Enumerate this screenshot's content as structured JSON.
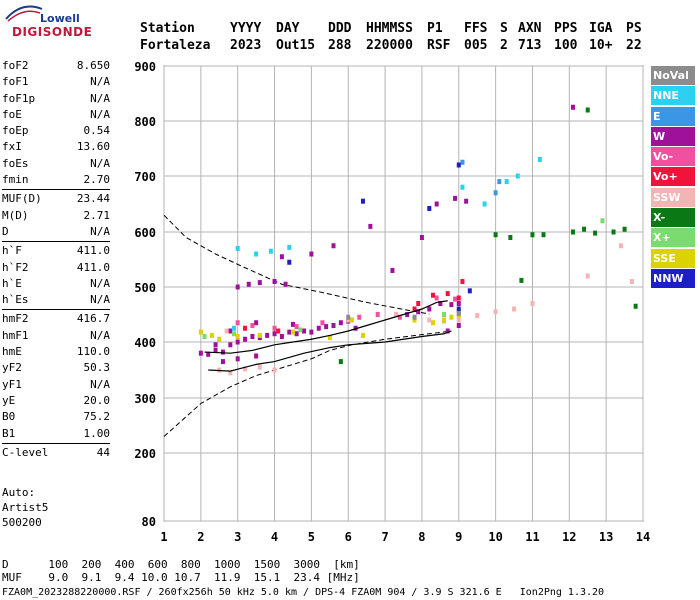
{
  "logo": {
    "top": "Lowell",
    "bottom": "DIGISONDE"
  },
  "header": {
    "labels": [
      "Station",
      "YYYY",
      "DAY",
      "DDD",
      "HHMMSS",
      "P1",
      "FFS",
      "S",
      "AXN",
      "PPS",
      "IGA",
      "PS"
    ],
    "values": [
      "Fortaleza",
      "2023",
      "Out15",
      "288",
      "220000",
      "RSF",
      "005",
      "2",
      "713",
      "100",
      "10+",
      "22"
    ]
  },
  "params": [
    {
      "name": "foF2",
      "value": "8.650"
    },
    {
      "name": "foF1",
      "value": "N/A"
    },
    {
      "name": "foF1p",
      "value": "N/A"
    },
    {
      "name": "foE",
      "value": "N/A"
    },
    {
      "name": "foEp",
      "value": "0.54"
    },
    {
      "name": "fxI",
      "value": "13.60"
    },
    {
      "name": "foEs",
      "value": "N/A"
    },
    {
      "name": "fmin",
      "value": "2.70"
    },
    {
      "name": "MUF(D)",
      "value": "23.44",
      "sep": true
    },
    {
      "name": "M(D)",
      "value": "2.71"
    },
    {
      "name": "D",
      "value": "N/A"
    },
    {
      "name": "h`F",
      "value": "411.0",
      "sep": true
    },
    {
      "name": "h`F2",
      "value": "411.0"
    },
    {
      "name": "h`E",
      "value": "N/A"
    },
    {
      "name": "h`Es",
      "value": "N/A"
    },
    {
      "name": "hmF2",
      "value": "416.7",
      "sep": true
    },
    {
      "name": "hmF1",
      "value": "N/A"
    },
    {
      "name": "hmE",
      "value": "110.0"
    },
    {
      "name": "yF2",
      "value": "50.3"
    },
    {
      "name": "yF1",
      "value": "N/A"
    },
    {
      "name": "yE",
      "value": "20.0"
    },
    {
      "name": "B0",
      "value": "75.2"
    },
    {
      "name": "B1",
      "value": "1.00"
    },
    {
      "name": "C-level",
      "value": "44",
      "sep": true
    }
  ],
  "auto": [
    "Auto:",
    "Artist5",
    "500200"
  ],
  "legend": [
    {
      "label": "NoVal",
      "color": "#8c8c8c"
    },
    {
      "label": "NNE",
      "color": "#28d2f0"
    },
    {
      "label": "E",
      "color": "#3c96e6"
    },
    {
      "label": "W",
      "color": "#a0119b"
    },
    {
      "label": "Vo-",
      "color": "#f050a0"
    },
    {
      "label": "Vo+",
      "color": "#f0143c"
    },
    {
      "label": "SSW",
      "color": "#f5b4b4"
    },
    {
      "label": "X-",
      "color": "#0a7814"
    },
    {
      "label": "X+",
      "color": "#78dc6e"
    },
    {
      "label": "SSE",
      "color": "#dcd200"
    },
    {
      "label": "NNW",
      "color": "#1e1ec8"
    }
  ],
  "footer": {
    "row1_label": "D",
    "row1_values": [
      "100",
      "200",
      "400",
      "600",
      "800",
      "1000",
      "1500",
      "3000",
      "[km]"
    ],
    "row2_label": "MUF",
    "row2_values": [
      "9.0",
      "9.1",
      "9.4",
      "10.0",
      "10.7",
      "11.9",
      "15.1",
      "23.4",
      "[MHz]"
    ],
    "source": "FZA0M_2023288220000.RSF / 260fx256h 50 kHz 5.0 km / DPS-4 FZA0M 904 / 3.9 S 321.6 E   Ion2Png 1.3.20"
  },
  "chart_data": {
    "type": "scatter",
    "xlim": [
      1,
      14
    ],
    "ylim": [
      80,
      900
    ],
    "xticks": [
      1,
      2,
      3,
      4,
      5,
      6,
      7,
      8,
      9,
      10,
      11,
      12,
      13,
      14
    ],
    "yticks": [
      80,
      200,
      300,
      400,
      500,
      600,
      700,
      800,
      900
    ],
    "grid": true,
    "legend_position": "right",
    "xlabel": "",
    "ylabel": "",
    "series": [
      {
        "name": "W",
        "color": "#a0119b",
        "points": [
          [
            2.0,
            380
          ],
          [
            2.2,
            378
          ],
          [
            2.4,
            385
          ],
          [
            2.6,
            382
          ],
          [
            2.8,
            395
          ],
          [
            3.0,
            400
          ],
          [
            3.2,
            405
          ],
          [
            3.4,
            410
          ],
          [
            3.6,
            408
          ],
          [
            3.8,
            412
          ],
          [
            4.0,
            415
          ],
          [
            4.2,
            410
          ],
          [
            4.4,
            418
          ],
          [
            4.6,
            415
          ],
          [
            4.8,
            420
          ],
          [
            5.0,
            418
          ],
          [
            5.2,
            425
          ],
          [
            5.4,
            428
          ],
          [
            5.6,
            430
          ],
          [
            5.8,
            435
          ],
          [
            6.0,
            438
          ],
          [
            3.0,
            500
          ],
          [
            3.3,
            505
          ],
          [
            3.6,
            508
          ],
          [
            4.0,
            510
          ],
          [
            4.3,
            505
          ],
          [
            2.6,
            365
          ],
          [
            3.0,
            370
          ],
          [
            3.5,
            375
          ],
          [
            7.6,
            450
          ],
          [
            7.9,
            455
          ],
          [
            8.2,
            460
          ],
          [
            8.5,
            470
          ],
          [
            8.8,
            468
          ],
          [
            9.0,
            470
          ],
          [
            8.0,
            590
          ],
          [
            8.4,
            650
          ],
          [
            8.9,
            660
          ],
          [
            9.2,
            655
          ],
          [
            12.1,
            825
          ],
          [
            6.6,
            610
          ],
          [
            7.2,
            530
          ],
          [
            8.7,
            420
          ],
          [
            9.0,
            430
          ],
          [
            4.2,
            555
          ],
          [
            5.0,
            560
          ],
          [
            5.6,
            575
          ],
          [
            2.4,
            395
          ],
          [
            2.8,
            420
          ],
          [
            3.5,
            435
          ],
          [
            4.5,
            432
          ],
          [
            6.2,
            425
          ]
        ]
      },
      {
        "name": "Vo-",
        "color": "#f050a0",
        "points": [
          [
            3.0,
            435
          ],
          [
            3.4,
            430
          ],
          [
            4.0,
            425
          ],
          [
            4.6,
            428
          ],
          [
            5.3,
            435
          ],
          [
            6.3,
            445
          ],
          [
            6.8,
            450
          ],
          [
            7.4,
            445
          ],
          [
            8.4,
            480
          ],
          [
            8.9,
            478
          ]
        ]
      },
      {
        "name": "Vo+",
        "color": "#f0143c",
        "points": [
          [
            7.8,
            460
          ],
          [
            8.3,
            485
          ],
          [
            8.7,
            488
          ],
          [
            9.1,
            510
          ],
          [
            9.0,
            480
          ],
          [
            7.9,
            470
          ],
          [
            3.2,
            425
          ],
          [
            4.1,
            420
          ]
        ]
      },
      {
        "name": "SSW",
        "color": "#f5b4b4",
        "points": [
          [
            2.5,
            350
          ],
          [
            2.8,
            345
          ],
          [
            3.2,
            352
          ],
          [
            3.6,
            355
          ],
          [
            4.0,
            350
          ],
          [
            7.3,
            450
          ],
          [
            7.8,
            445
          ],
          [
            8.2,
            440
          ],
          [
            8.6,
            438
          ],
          [
            9.0,
            440
          ],
          [
            9.5,
            448
          ],
          [
            10.0,
            455
          ],
          [
            10.5,
            460
          ],
          [
            11.0,
            470
          ],
          [
            12.5,
            520
          ],
          [
            13.4,
            575
          ],
          [
            13.7,
            510
          ],
          [
            2.7,
            420
          ],
          [
            6.0,
            440
          ]
        ]
      },
      {
        "name": "X-",
        "color": "#0a7814",
        "points": [
          [
            10.0,
            595
          ],
          [
            10.4,
            590
          ],
          [
            11.0,
            595
          ],
          [
            11.3,
            595
          ],
          [
            12.1,
            600
          ],
          [
            12.4,
            605
          ],
          [
            12.7,
            598
          ],
          [
            13.2,
            600
          ],
          [
            13.5,
            605
          ],
          [
            12.5,
            820
          ],
          [
            10.7,
            512
          ],
          [
            13.8,
            465
          ],
          [
            5.8,
            365
          ]
        ]
      },
      {
        "name": "X+",
        "color": "#78dc6e",
        "points": [
          [
            2.1,
            410
          ],
          [
            2.9,
            415
          ],
          [
            4.7,
            422
          ],
          [
            8.6,
            450
          ],
          [
            9.0,
            455
          ],
          [
            12.9,
            620
          ]
        ]
      },
      {
        "name": "SSE",
        "color": "#dcd200",
        "points": [
          [
            2.0,
            418
          ],
          [
            2.3,
            412
          ],
          [
            2.5,
            405
          ],
          [
            3.0,
            410
          ],
          [
            3.6,
            412
          ],
          [
            4.5,
            418
          ],
          [
            5.5,
            408
          ],
          [
            6.4,
            412
          ],
          [
            8.3,
            435
          ],
          [
            8.6,
            440
          ],
          [
            8.8,
            445
          ],
          [
            9.0,
            448
          ],
          [
            7.8,
            440
          ],
          [
            6.1,
            440
          ]
        ]
      },
      {
        "name": "NNE",
        "color": "#28d2f0",
        "points": [
          [
            9.1,
            680
          ],
          [
            9.7,
            650
          ],
          [
            10.3,
            690
          ],
          [
            10.6,
            700
          ],
          [
            11.2,
            730
          ],
          [
            3.0,
            570
          ],
          [
            3.5,
            560
          ],
          [
            3.9,
            565
          ],
          [
            4.4,
            572
          ],
          [
            2.9,
            425
          ]
        ]
      },
      {
        "name": "E",
        "color": "#3c96e6",
        "points": [
          [
            9.1,
            725
          ],
          [
            10.0,
            670
          ],
          [
            10.1,
            690
          ]
        ]
      },
      {
        "name": "NNW",
        "color": "#1e1ec8",
        "points": [
          [
            6.4,
            655
          ],
          [
            9.0,
            720
          ],
          [
            8.2,
            642
          ],
          [
            4.4,
            545
          ],
          [
            9.0,
            460
          ],
          [
            9.3,
            493
          ]
        ]
      },
      {
        "name": "NoVal",
        "color": "#8c8c8c",
        "points": [
          [
            7.8,
            445
          ],
          [
            9.0,
            452
          ],
          [
            6.0,
            445
          ]
        ]
      }
    ],
    "profile_curve": [
      [
        2.1,
        382
      ],
      [
        2.8,
        380
      ],
      [
        3.4,
        385
      ],
      [
        4.0,
        395
      ],
      [
        4.5,
        400
      ],
      [
        5.0,
        405
      ],
      [
        5.5,
        412
      ],
      [
        6.0,
        420
      ],
      [
        6.5,
        430
      ],
      [
        7.0,
        440
      ],
      [
        7.5,
        450
      ],
      [
        8.0,
        460
      ],
      [
        8.4,
        472
      ],
      [
        8.7,
        475
      ]
    ],
    "trace_curve": [
      [
        2.2,
        350
      ],
      [
        2.8,
        348
      ],
      [
        3.5,
        360
      ],
      [
        4.0,
        365
      ],
      [
        4.8,
        380
      ],
      [
        5.5,
        390
      ],
      [
        6.0,
        395
      ],
      [
        7.0,
        400
      ],
      [
        8.0,
        410
      ],
      [
        8.6,
        415
      ],
      [
        8.8,
        420
      ]
    ],
    "dashed_curves": [
      [
        [
          1.0,
          630
        ],
        [
          1.6,
          590
        ],
        [
          2.4,
          560
        ],
        [
          3.2,
          535
        ],
        [
          4.2,
          505
        ],
        [
          5.3,
          490
        ],
        [
          6.5,
          472
        ],
        [
          7.6,
          458
        ],
        [
          8.2,
          451
        ]
      ],
      [
        [
          1.0,
          230
        ],
        [
          1.5,
          260
        ],
        [
          2.0,
          290
        ],
        [
          2.8,
          320
        ],
        [
          3.5,
          340
        ],
        [
          4.0,
          350
        ],
        [
          5.0,
          370
        ],
        [
          5.5,
          385
        ],
        [
          6.1,
          395
        ],
        [
          7.0,
          405
        ],
        [
          8.2,
          415
        ],
        [
          8.8,
          420
        ]
      ]
    ]
  }
}
